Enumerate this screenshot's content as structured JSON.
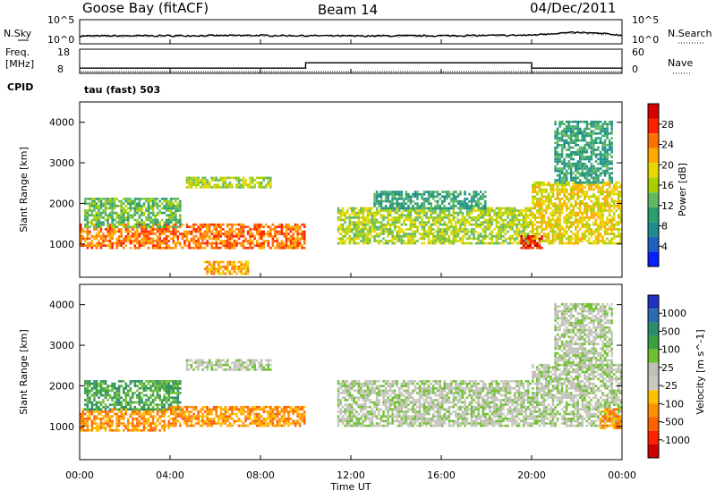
{
  "header": {
    "station": "Goose Bay (fitACF)",
    "beam": "Beam 14",
    "date": "04/Dec/2011"
  },
  "noise_panel": {
    "left_label": "N.Sky",
    "right_label": "N.Search",
    "left_ticks": [
      "10^5",
      "10^0"
    ],
    "right_ticks": [
      "10^5",
      "10^0"
    ]
  },
  "freq_panel": {
    "left_label_1": "Freq.",
    "left_label_2": "[MHz]",
    "left_ticks": [
      "18",
      "8"
    ],
    "right_label": "Nave",
    "right_ticks": [
      "60",
      "0"
    ],
    "cpid_label": "CPID",
    "cpid_value": "tau (fast) 503"
  },
  "power_panel": {
    "ylabel": "Slant Range [km]",
    "yticks": [
      "4000",
      "3000",
      "2000",
      "1000"
    ],
    "colorbar_label": "Power [dB]",
    "colorbar_ticks": [
      "28",
      "24",
      "20",
      "16",
      "12",
      "8",
      "4"
    ],
    "colorbar_colors": [
      "#d80000",
      "#ff2000",
      "#ff7000",
      "#ffa800",
      "#e8d800",
      "#a8d000",
      "#60b860",
      "#2aa070",
      "#208c90",
      "#2060c0",
      "#0a20ff"
    ]
  },
  "velocity_panel": {
    "ylabel": "Slant Range [km]",
    "yticks": [
      "4000",
      "3000",
      "2000",
      "1000"
    ],
    "colorbar_label": "Velocity [m s^-1]",
    "colorbar_ticks": [
      "1000",
      "500",
      "100",
      "25",
      "-25",
      "-100",
      "-500",
      "-1000"
    ],
    "colorbar_colors": [
      "#2030c0",
      "#2a6ab0",
      "#2a8c6a",
      "#3aa040",
      "#70c030",
      "#c0c0b8",
      "#c8c8c0",
      "#ffc000",
      "#ff9000",
      "#ff6000",
      "#ff2000",
      "#d00000"
    ]
  },
  "xaxis": {
    "label": "Time UT",
    "ticks": [
      "00:00",
      "04:00",
      "08:00",
      "12:00",
      "16:00",
      "20:00",
      "00:00"
    ]
  },
  "chart_data": [
    {
      "type": "line",
      "name": "noise",
      "x": [
        0,
        4,
        8,
        12,
        16,
        20,
        22,
        24
      ],
      "y_sky": [
        30,
        35,
        40,
        30,
        35,
        45,
        200,
        40
      ],
      "y_search": [
        20,
        25,
        30,
        25,
        25,
        35,
        150,
        30
      ]
    },
    {
      "type": "line",
      "name": "frequency",
      "x": [
        0,
        10,
        10,
        20,
        20,
        24
      ],
      "freq_mhz": [
        10,
        10,
        12.5,
        12.5,
        10,
        10
      ],
      "nave": [
        2,
        2,
        2,
        2,
        2,
        2
      ]
    },
    {
      "type": "heatmap",
      "name": "power",
      "xlim": [
        0,
        24
      ],
      "ylim": [
        180,
        4500
      ],
      "zlim": [
        0,
        30
      ],
      "regions": [
        {
          "t0": 0,
          "t1": 10,
          "r0": 900,
          "r1": 1500,
          "v": 24
        },
        {
          "t0": 0.2,
          "t1": 4.5,
          "r0": 1400,
          "r1": 2100,
          "v": 12
        },
        {
          "t0": 4.8,
          "t1": 8.5,
          "r0": 2400,
          "r1": 2650,
          "v": 14
        },
        {
          "t0": 5.5,
          "t1": 7.5,
          "r0": 250,
          "r1": 550,
          "v": 22
        },
        {
          "t0": 11.4,
          "t1": 20,
          "r0": 1000,
          "r1": 1900,
          "v": 16
        },
        {
          "t0": 13,
          "t1": 18,
          "r0": 1900,
          "r1": 2300,
          "v": 8
        },
        {
          "t0": 20,
          "t1": 24,
          "r0": 1000,
          "r1": 2500,
          "v": 18
        },
        {
          "t0": 19.5,
          "t1": 20.5,
          "r0": 900,
          "r1": 1200,
          "v": 28
        },
        {
          "t0": 21,
          "t1": 23.6,
          "r0": 2500,
          "r1": 4000,
          "v": 10
        }
      ]
    },
    {
      "type": "heatmap",
      "name": "velocity",
      "xlim": [
        0,
        24
      ],
      "ylim": [
        180,
        4500
      ],
      "zlim": [
        -1000,
        1000
      ],
      "regions": [
        {
          "t0": 0,
          "t1": 4,
          "r0": 900,
          "r1": 1400,
          "v": -120
        },
        {
          "t0": 0.2,
          "t1": 4.5,
          "r0": 1400,
          "r1": 2100,
          "v": 100
        },
        {
          "t0": 4,
          "t1": 10,
          "r0": 1000,
          "r1": 1500,
          "v": -110
        },
        {
          "t0": 4.8,
          "t1": 8.5,
          "r0": 2400,
          "r1": 2650,
          "v": 0
        },
        {
          "t0": 11.4,
          "t1": 20,
          "r0": 1000,
          "r1": 2100,
          "v": 0
        },
        {
          "t0": 20,
          "t1": 24,
          "r0": 1000,
          "r1": 2500,
          "v": 0
        },
        {
          "t0": 23,
          "t1": 24,
          "r0": 950,
          "r1": 1400,
          "v": -120
        },
        {
          "t0": 21,
          "t1": 23.6,
          "r0": 2500,
          "r1": 4000,
          "v": 0
        }
      ]
    }
  ]
}
